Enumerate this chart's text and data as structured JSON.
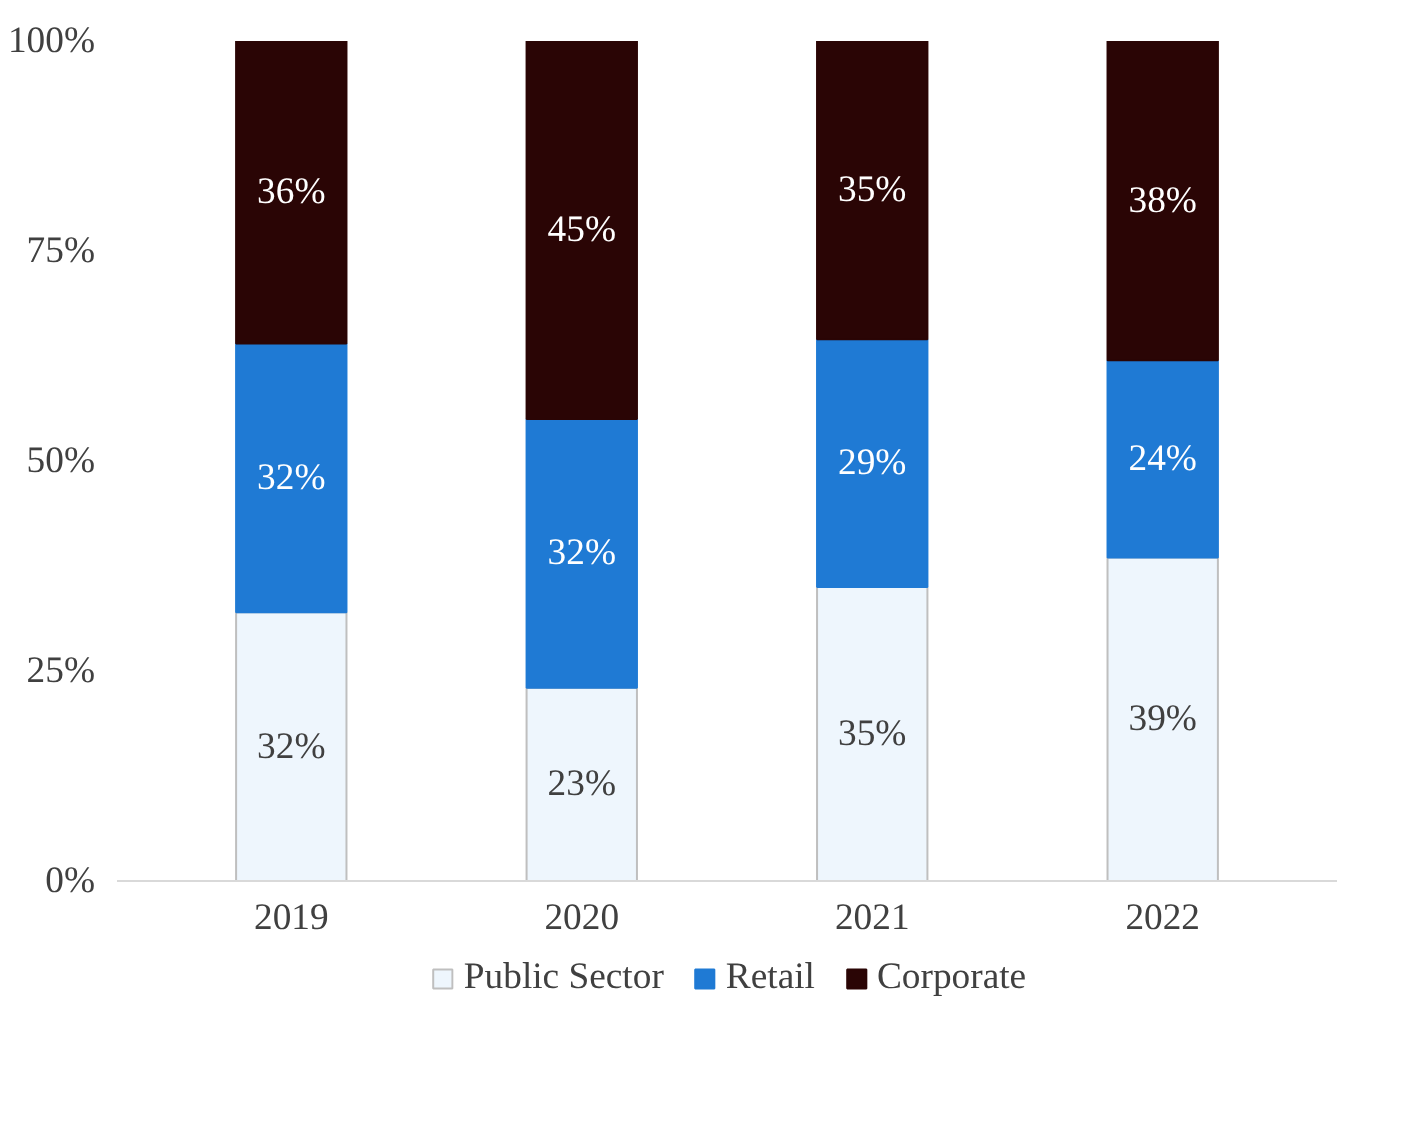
{
  "chart_data": {
    "type": "bar",
    "stacked": true,
    "categories": [
      "2019",
      "2020",
      "2021",
      "2022"
    ],
    "series": [
      {
        "name": "Public Sector",
        "color": "#eef6fd",
        "values": [
          32,
          23,
          35,
          38.5
        ],
        "value_labels": [
          "32%",
          "23%",
          "35%",
          "39%"
        ]
      },
      {
        "name": "Retail",
        "color": "#1f7ad4",
        "values": [
          32,
          32,
          29.5,
          23.5
        ],
        "value_labels": [
          "32%",
          "32%",
          "29%",
          "24%"
        ]
      },
      {
        "name": "Corporate",
        "color": "#2a0505",
        "values": [
          36,
          45,
          35.5,
          38
        ],
        "value_labels": [
          "36%",
          "45%",
          "35%",
          "38%"
        ]
      }
    ],
    "ylim": [
      0,
      100
    ],
    "yticks": [
      {
        "value": 0,
        "label": "0%"
      },
      {
        "value": 25,
        "label": "25%"
      },
      {
        "value": 50,
        "label": "50%"
      },
      {
        "value": 75,
        "label": "75%"
      },
      {
        "value": 100,
        "label": "100%"
      }
    ],
    "grid": false,
    "legend": "bottom"
  }
}
